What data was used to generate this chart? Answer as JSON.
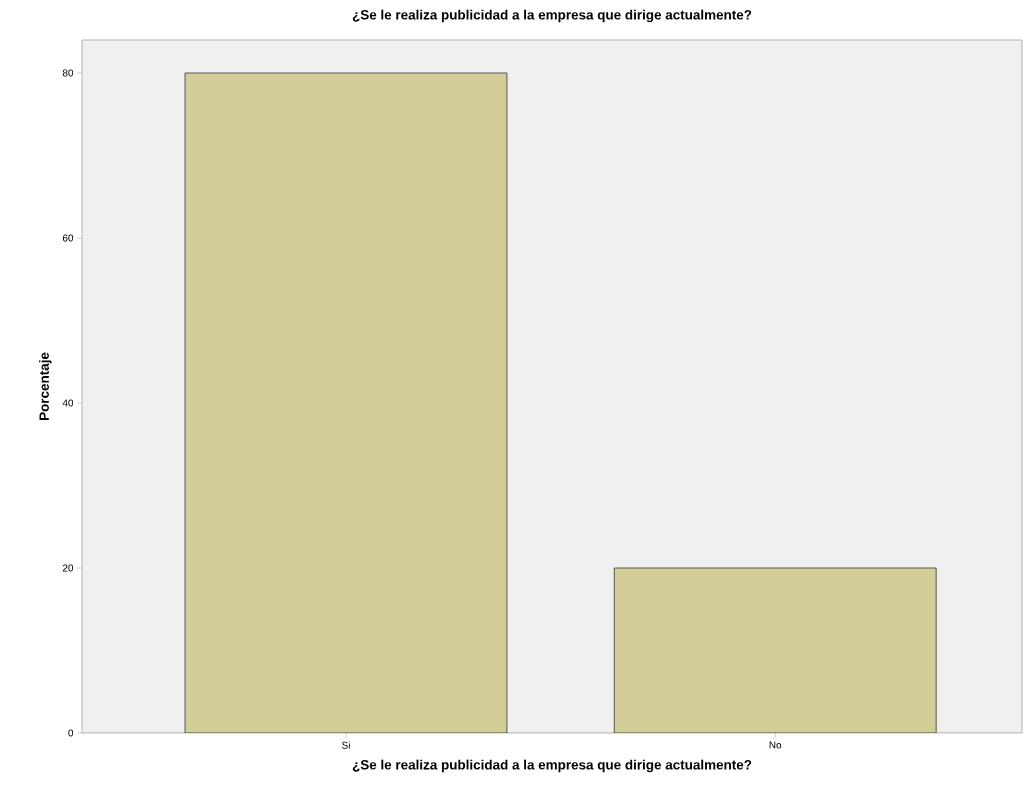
{
  "chart_data": {
    "type": "bar",
    "title": "¿Se le realiza publicidad a la empresa que dirige actualmente?",
    "xlabel": "¿Se le realiza publicidad a la empresa que dirige actualmente?",
    "ylabel": "Porcentaje",
    "categories": [
      "Si",
      "No"
    ],
    "values": [
      80,
      20
    ],
    "color": "#d3ce97",
    "ylim": [
      0,
      84
    ],
    "yticks": [
      0,
      20,
      40,
      60,
      80
    ]
  }
}
